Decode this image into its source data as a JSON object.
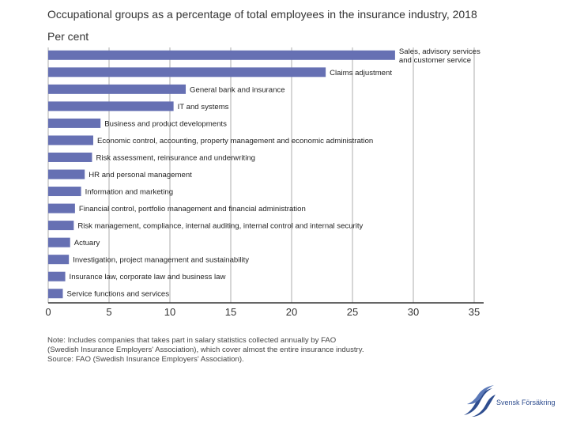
{
  "title": "Occupational groups as a percentage of total employees in the insurance industry, 2018",
  "unit_label": "Per cent",
  "colors": {
    "bar": "#6670b3",
    "grid": "#9a9a9a",
    "axis": "#333333",
    "logo": "#2e4d8f"
  },
  "chart_data": {
    "type": "bar",
    "orientation": "horizontal",
    "title": "Occupational groups as a percentage of total employees in the insurance industry, 2018",
    "xlabel": "",
    "ylabel": "Per cent",
    "xlim": [
      0,
      35
    ],
    "xticks": [
      0,
      5,
      10,
      15,
      20,
      25,
      30,
      35
    ],
    "grid": true,
    "categories": [
      [
        "Sales, advisory services",
        "and customer service"
      ],
      [
        "Claims adjustment"
      ],
      [
        "General bank and insurance"
      ],
      [
        "IT and systems"
      ],
      [
        "Business and product developments"
      ],
      [
        "Economic control, accounting, property management and economic administration"
      ],
      [
        "Risk assessment, reinsurance and underwriting"
      ],
      [
        "HR and personal management"
      ],
      [
        "Information and marketing"
      ],
      [
        "Financial control, portfolio management and financial administration"
      ],
      [
        "Risk management, compliance, internal auditing, internal control and internal security"
      ],
      [
        "Actuary"
      ],
      [
        "Investigation, project management and sustainability"
      ],
      [
        "Insurance law, corporate law and business law"
      ],
      [
        "Service functions and services"
      ]
    ],
    "values": [
      28.5,
      22.8,
      11.3,
      10.3,
      4.3,
      3.7,
      3.6,
      3.0,
      2.7,
      2.2,
      2.1,
      1.8,
      1.7,
      1.4,
      1.2
    ]
  },
  "note": {
    "line1": "Note: Includes companies that takes part in salary statistics collected annually by FAO",
    "line2": "(Swedish Insurance Employers' Association), which cover almost the entire insurance industry.",
    "line3": "Source: FAO (Swedish Insurance Employers' Association)."
  },
  "logo": {
    "text": "Svensk Försäkring",
    "icon": "svensk-forsakring-logo-icon"
  }
}
